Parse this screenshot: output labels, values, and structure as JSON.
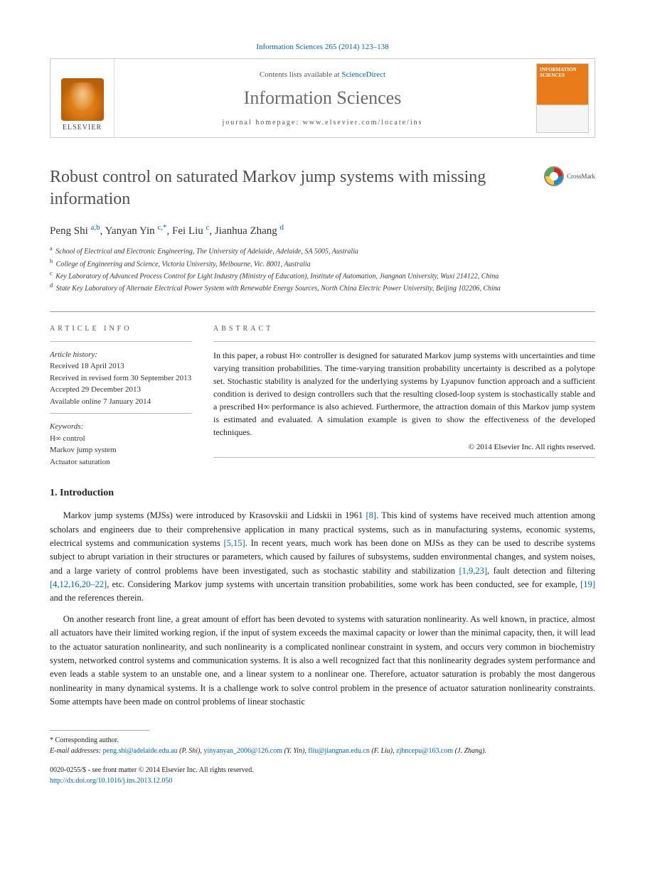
{
  "citation_line": "Information Sciences 265 (2014) 123–138",
  "masthead": {
    "contents_prefix": "Contents lists available at ",
    "contents_link": "ScienceDirect",
    "journal": "Information Sciences",
    "homepage_label": "journal homepage: www.elsevier.com/locate/ins",
    "publisher": "ELSEVIER",
    "cover_title": "INFORMATION SCIENCES"
  },
  "paper": {
    "title": "Robust control on saturated Markov jump systems with missing information",
    "crossmark": "CrossMark"
  },
  "authors_html": "Peng Shi <sup>a,b</sup>, Yanyan Yin <sup>c,*</sup>, Fei Liu <sup>c</sup>, Jianhua Zhang <sup>d</sup>",
  "affiliations": [
    {
      "sup": "a",
      "text": "School of Electrical and Electronic Engineering, The University of Adelaide, Adelaide, SA 5005, Australia"
    },
    {
      "sup": "b",
      "text": "College of Engineering and Science, Victoria University, Melbourne, Vic. 8001, Australia"
    },
    {
      "sup": "c",
      "text": "Key Laboratory of Advanced Process Control for Light Industry (Ministry of Education), Institute of Automation, Jiangnan University, Wuxi 214122, China"
    },
    {
      "sup": "d",
      "text": "State Key Laboratory of Alternate Electrical Power System with Renewable Energy Sources, North China Electric Power University, Beijing 102206, China"
    }
  ],
  "article_info": {
    "label": "ARTICLE INFO",
    "history_label": "Article history:",
    "history": [
      "Received 18 April 2013",
      "Received in revised form 30 September 2013",
      "Accepted 29 December 2013",
      "Available online 7 January 2014"
    ],
    "keywords_label": "Keywords:",
    "keywords": [
      "H∞ control",
      "Markov jump system",
      "Actuator saturation"
    ]
  },
  "abstract": {
    "label": "ABSTRACT",
    "text": "In this paper, a robust H∞ controller is designed for saturated Markov jump systems with uncertainties and time varying transition probabilities. The time-varying transition probability uncertainty is described as a polytope set. Stochastic stability is analyzed for the underlying systems by Lyapunov function approach and a sufficient condition is derived to design controllers such that the resulting closed-loop system is stochastically stable and a prescribed H∞ performance is also achieved. Furthermore, the attraction domain of this Markov jump system is estimated and evaluated. A simulation example is given to show the effectiveness of the developed techniques.",
    "copyright": "© 2014 Elsevier Inc. All rights reserved."
  },
  "introduction": {
    "heading": "1. Introduction",
    "p1_pre": "Markov jump systems (MJSs) were introduced by Krasovskii and Lidskii in 1961 ",
    "p1_ref1": "[8]",
    "p1_mid1": ". This kind of systems have received much attention among scholars and engineers due to their comprehensive application in many practical systems, such as in manufacturing systems, economic systems, electrical systems and communication systems ",
    "p1_ref2": "[5,15]",
    "p1_mid2": ". In recent years, much work has been done on MJSs as they can be used to describe systems subject to abrupt variation in their structures or parameters, which caused by failures of subsystems, sudden environmental changes, and system noises, and a large variety of control problems have been investigated, such as stochastic stability and stabilization ",
    "p1_ref3": "[1,9,23]",
    "p1_mid3": ", fault detection and filtering ",
    "p1_ref4": "[4,12,16,20–22]",
    "p1_mid4": ", etc. Considering Markov jump systems with uncertain transition probabilities, some work has been conducted, see for example, ",
    "p1_ref5": "[19]",
    "p1_post": " and the references therein.",
    "p2": "On another research front line, a great amount of effort has been devoted to systems with saturation nonlinearity. As well known, in practice, almost all actuators have their limited working region, if the input of system exceeds the maximal capacity or lower than the minimal capacity, then, it will lead to the actuator saturation nonlinearity, and such nonlinearity is a complicated nonlinear constraint in system, and occurs very common in biochemistry system, networked control systems and communication systems. It is also a well recognized fact that this nonlinearity degrades system performance and even leads a stable system to an unstable one, and a linear system to a nonlinear one. Therefore, actuator saturation is probably the most dangerous nonlinearity in many dynamical systems. It is a challenge work to solve control problem in the presence of actuator saturation nonlinearity constraints. Some attempts have been made on control problems of linear stochastic"
  },
  "footer": {
    "corresponding": "* Corresponding author.",
    "emails_label": "E-mail addresses: ",
    "emails": [
      {
        "addr": "peng.shi@adelaide.edu.au",
        "who": "(P. Shi)"
      },
      {
        "addr": "yinyanyan_2006@126.com",
        "who": "(Y. Yin)"
      },
      {
        "addr": "fliu@jiangnan.edu.cn",
        "who": "(F. Liu)"
      },
      {
        "addr": "zjhncepu@163.com",
        "who": "(J. Zhang)"
      }
    ],
    "issn_line": "0020-0255/$ - see front matter © 2014 Elsevier Inc. All rights reserved.",
    "doi": "http://dx.doi.org/10.1016/j.ins.2013.12.050"
  },
  "colors": {
    "link": "#0066a8",
    "elsevier_orange": "#e87a1a",
    "text": "#222222",
    "muted": "#555555",
    "rule": "#999999"
  }
}
